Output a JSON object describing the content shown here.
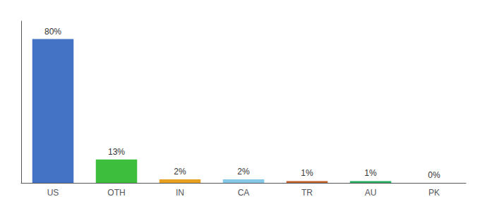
{
  "chart_data": {
    "type": "bar",
    "categories": [
      "US",
      "OTH",
      "IN",
      "CA",
      "TR",
      "AU",
      "PK"
    ],
    "values": [
      80,
      13,
      2,
      2,
      1,
      1,
      0
    ],
    "value_labels": [
      "80%",
      "13%",
      "2%",
      "2%",
      "1%",
      "1%",
      "0%"
    ],
    "data_labels": true,
    "colors": [
      "#4472C4",
      "#3DBE3D",
      "#E8A020",
      "#85C8E8",
      "#C0602B",
      "#27AE60",
      "#FFFFFF"
    ],
    "ylim": [
      0,
      90
    ],
    "tick_labels": "x",
    "grid": false
  }
}
